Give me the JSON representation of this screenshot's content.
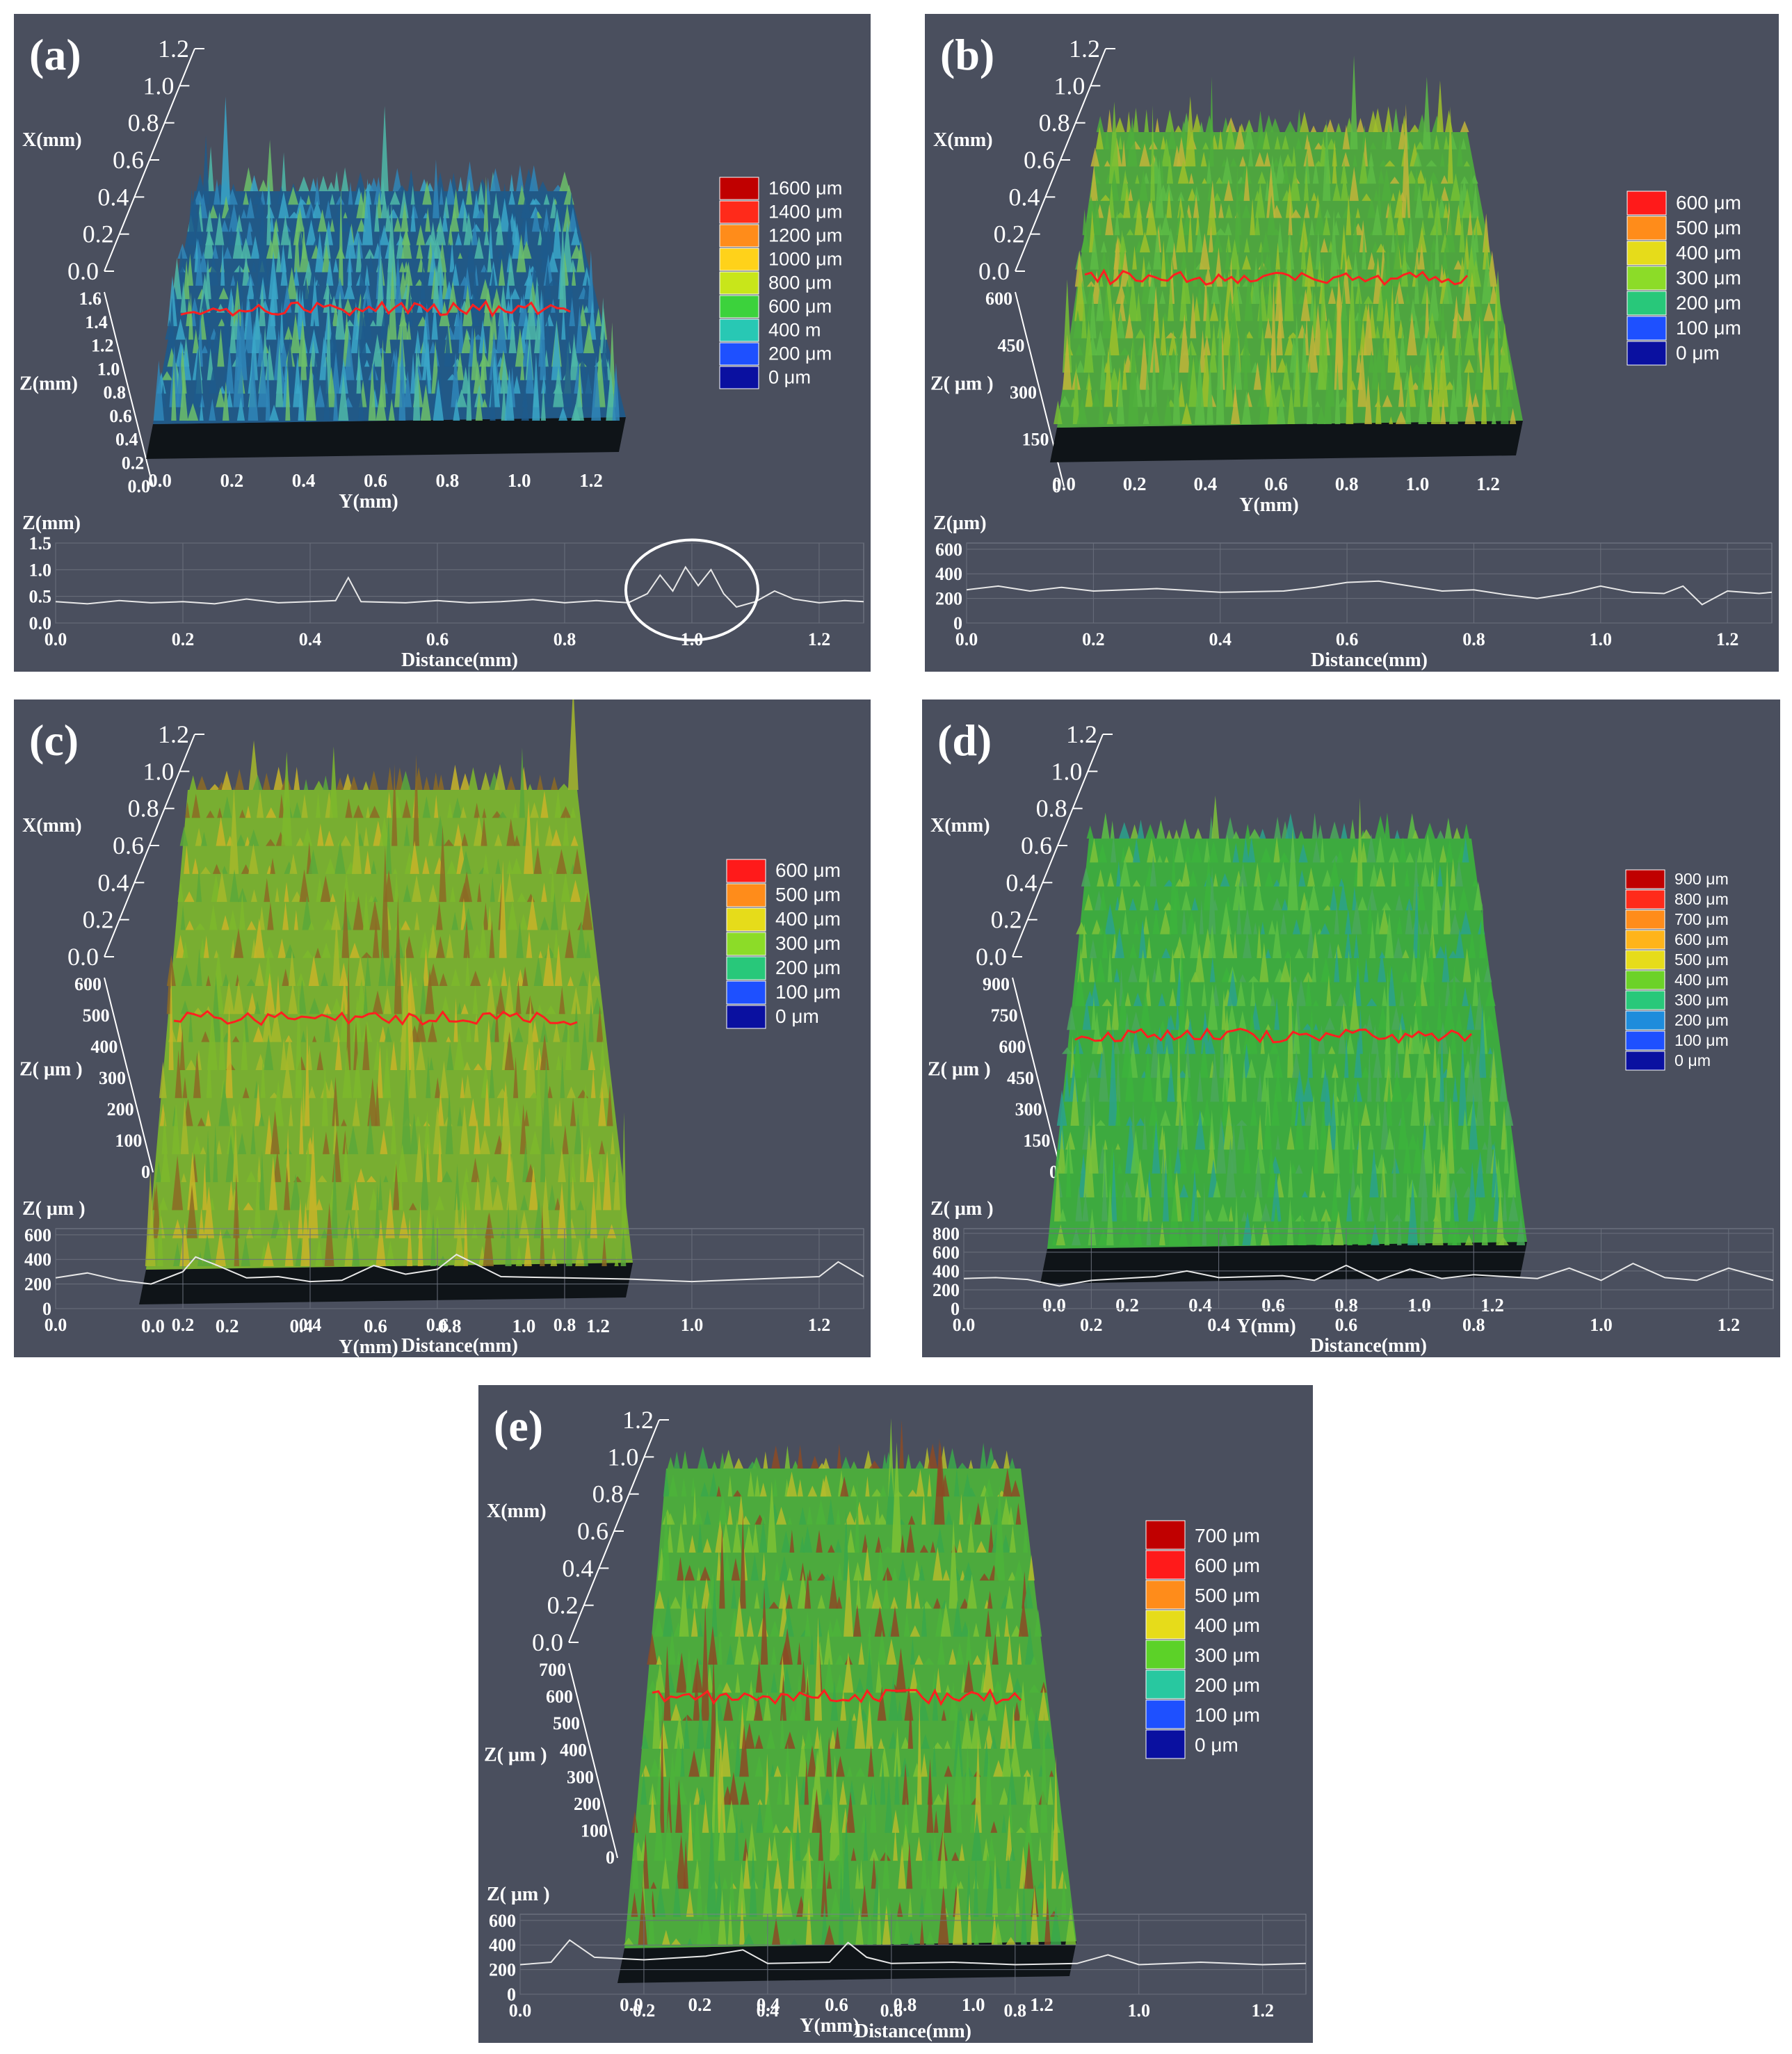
{
  "figure": {
    "panels": [
      {
        "id": "a",
        "label": "(a)",
        "x_axis_label": "X(mm)",
        "x_ticks": [
          "1.2",
          "1.0",
          "0.8",
          "0.6",
          "0.4",
          "0.2",
          "0.0"
        ],
        "z_axis_label": "Z(mm)",
        "z_ticks": [
          "1.6",
          "1.4",
          "1.2",
          "1.0",
          "0.8",
          "0.6",
          "0.4",
          "0.2",
          "0.0"
        ],
        "y_axis_label": "Y(mm)",
        "y_ticks": [
          "0.0",
          "0.2",
          "0.4",
          "0.6",
          "0.8",
          "1.0",
          "1.2"
        ],
        "legend": [
          "1600 μm",
          "1400 μm",
          "1200 μm",
          "1000 μm",
          "800 μm",
          "600 μm",
          "400   m",
          "200 μm",
          "0 μm"
        ],
        "legend_colors": [
          "#c00000",
          "#ff2a1a",
          "#ff8c1a",
          "#ffd21a",
          "#c8e61a",
          "#3cd23c",
          "#28c8b4",
          "#1e50ff",
          "#0a10a0"
        ],
        "surface_palette": [
          "#1d5a8c",
          "#2f86b8",
          "#3aa6c8",
          "#4db8a8",
          "#6cbf6a"
        ],
        "profile_axis_label": "Z(mm)",
        "profile_y_ticks": [
          "1.5",
          "1.0",
          "0.5",
          "0.0"
        ],
        "profile_x_ticks": [
          "0.0",
          "0.2",
          "0.4",
          "0.6",
          "0.8",
          "1.0",
          "1.2"
        ],
        "profile_x_label": "Distance(mm)",
        "profile_ylim": [
          0,
          1.5
        ],
        "profile_xlim": [
          0,
          1.27
        ],
        "profile_points": [
          [
            0,
            0.4
          ],
          [
            0.05,
            0.36
          ],
          [
            0.1,
            0.42
          ],
          [
            0.15,
            0.38
          ],
          [
            0.2,
            0.4
          ],
          [
            0.25,
            0.36
          ],
          [
            0.3,
            0.45
          ],
          [
            0.35,
            0.38
          ],
          [
            0.4,
            0.4
          ],
          [
            0.44,
            0.42
          ],
          [
            0.46,
            0.85
          ],
          [
            0.48,
            0.4
          ],
          [
            0.55,
            0.38
          ],
          [
            0.6,
            0.42
          ],
          [
            0.65,
            0.38
          ],
          [
            0.7,
            0.4
          ],
          [
            0.75,
            0.44
          ],
          [
            0.8,
            0.38
          ],
          [
            0.85,
            0.42
          ],
          [
            0.9,
            0.38
          ],
          [
            0.93,
            0.55
          ],
          [
            0.95,
            0.9
          ],
          [
            0.97,
            0.6
          ],
          [
            0.99,
            1.05
          ],
          [
            1.01,
            0.7
          ],
          [
            1.03,
            1.0
          ],
          [
            1.05,
            0.55
          ],
          [
            1.07,
            0.3
          ],
          [
            1.1,
            0.4
          ],
          [
            1.13,
            0.6
          ],
          [
            1.16,
            0.45
          ],
          [
            1.2,
            0.38
          ],
          [
            1.24,
            0.42
          ],
          [
            1.27,
            0.4
          ]
        ],
        "highlight_circle": true
      },
      {
        "id": "b",
        "label": "(b)",
        "x_axis_label": "X(mm)",
        "x_ticks": [
          "1.2",
          "1.0",
          "0.8",
          "0.6",
          "0.4",
          "0.2",
          "0.0"
        ],
        "z_axis_label": "Z( μm )",
        "z_ticks": [
          "600",
          "450",
          "300",
          "150",
          "0"
        ],
        "y_axis_label": "Y(mm)",
        "y_ticks": [
          "0.0",
          "0.2",
          "0.4",
          "0.6",
          "0.8",
          "1.0",
          "1.2"
        ],
        "legend": [
          "600 μm",
          "500 μm",
          "400 μm",
          "300 μm",
          "200 μm",
          "100 μm",
          "0 μm"
        ],
        "legend_colors": [
          "#ff1a1a",
          "#ff8c1a",
          "#e6dc1a",
          "#8cdc28",
          "#28c87a",
          "#1e50ff",
          "#0a10a0"
        ],
        "surface_palette": [
          "#4fae3c",
          "#76c034",
          "#9fbf2a",
          "#c2b43a",
          "#5dbb45"
        ],
        "profile_axis_label": "Z(μm)",
        "profile_y_ticks": [
          "600",
          "400",
          "200",
          "0"
        ],
        "profile_x_ticks": [
          "0.0",
          "0.2",
          "0.4",
          "0.6",
          "0.8",
          "1.0",
          "1.2"
        ],
        "profile_x_label": "Distance(mm)",
        "profile_ylim": [
          0,
          650
        ],
        "profile_xlim": [
          0,
          1.27
        ],
        "profile_points": [
          [
            0,
            270
          ],
          [
            0.05,
            300
          ],
          [
            0.1,
            260
          ],
          [
            0.15,
            290
          ],
          [
            0.2,
            260
          ],
          [
            0.3,
            280
          ],
          [
            0.4,
            250
          ],
          [
            0.5,
            260
          ],
          [
            0.55,
            290
          ],
          [
            0.6,
            330
          ],
          [
            0.65,
            340
          ],
          [
            0.7,
            300
          ],
          [
            0.75,
            260
          ],
          [
            0.8,
            270
          ],
          [
            0.85,
            230
          ],
          [
            0.9,
            200
          ],
          [
            0.95,
            240
          ],
          [
            1.0,
            300
          ],
          [
            1.05,
            250
          ],
          [
            1.1,
            240
          ],
          [
            1.13,
            300
          ],
          [
            1.16,
            150
          ],
          [
            1.2,
            260
          ],
          [
            1.25,
            240
          ],
          [
            1.27,
            250
          ]
        ],
        "highlight_circle": false
      },
      {
        "id": "c",
        "label": "(c)",
        "x_axis_label": "X(mm)",
        "x_ticks": [
          "1.2",
          "1.0",
          "0.8",
          "0.6",
          "0.4",
          "0.2",
          "0.0"
        ],
        "z_axis_label": "Z( μm )",
        "z_ticks": [
          "600",
          "500",
          "400",
          "300",
          "200",
          "100",
          "0"
        ],
        "y_axis_label": "Y(mm)",
        "y_ticks": [
          "0.0",
          "0.2",
          "0.4",
          "0.6",
          "0.8",
          "1.0",
          "1.2"
        ],
        "legend": [
          "600 μm",
          "500 μm",
          "400 μm",
          "300 μm",
          "200 μm",
          "100 μm",
          "0 μm"
        ],
        "legend_colors": [
          "#ff1a1a",
          "#ff8c1a",
          "#e6dc1a",
          "#8cdc28",
          "#28c87a",
          "#1e50ff",
          "#0a10a0"
        ],
        "surface_palette": [
          "#7db82c",
          "#a6b82a",
          "#c8b428",
          "#5aa83a",
          "#8c6a24"
        ],
        "profile_axis_label": "Z( μm )",
        "profile_y_ticks": [
          "600",
          "400",
          "200",
          "0"
        ],
        "profile_x_ticks": [
          "0.0",
          "0.2",
          "0.4",
          "0.6",
          "0.8",
          "1.0",
          "1.2"
        ],
        "profile_x_label": "Distance(mm)",
        "profile_ylim": [
          0,
          650
        ],
        "profile_xlim": [
          0,
          1.27
        ],
        "profile_points": [
          [
            0,
            250
          ],
          [
            0.05,
            290
          ],
          [
            0.1,
            230
          ],
          [
            0.15,
            200
          ],
          [
            0.2,
            300
          ],
          [
            0.22,
            420
          ],
          [
            0.25,
            360
          ],
          [
            0.3,
            250
          ],
          [
            0.35,
            260
          ],
          [
            0.4,
            220
          ],
          [
            0.45,
            230
          ],
          [
            0.5,
            350
          ],
          [
            0.55,
            280
          ],
          [
            0.6,
            320
          ],
          [
            0.63,
            440
          ],
          [
            0.7,
            260
          ],
          [
            0.8,
            250
          ],
          [
            0.9,
            240
          ],
          [
            1.0,
            220
          ],
          [
            1.1,
            240
          ],
          [
            1.2,
            260
          ],
          [
            1.23,
            380
          ],
          [
            1.27,
            260
          ]
        ],
        "highlight_circle": false
      },
      {
        "id": "d",
        "label": "(d)",
        "x_axis_label": "X(mm)",
        "x_ticks": [
          "1.2",
          "1.0",
          "0.8",
          "0.6",
          "0.4",
          "0.2",
          "0.0"
        ],
        "z_axis_label": "Z( μm )",
        "z_ticks": [
          "900",
          "750",
          "600",
          "450",
          "300",
          "150",
          "0"
        ],
        "y_axis_label": "Y(mm)",
        "y_ticks": [
          "0.0",
          "0.2",
          "0.4",
          "0.6",
          "0.8",
          "1.0",
          "1.2"
        ],
        "legend": [
          "900 μm",
          "800 μm",
          "700 μm",
          "600 μm",
          "500 μm",
          "400 μm",
          "300 μm",
          "200 μm",
          "100 μm",
          "0 μm"
        ],
        "legend_colors": [
          "#c00000",
          "#ff2a1a",
          "#ff8c1a",
          "#ffb41a",
          "#e6dc1a",
          "#6cd228",
          "#28c87a",
          "#1e8cdc",
          "#1e50ff",
          "#0a10a0"
        ],
        "surface_palette": [
          "#3cb43c",
          "#5cc044",
          "#2aa28c",
          "#7cc23a",
          "#4aa85a"
        ],
        "profile_axis_label": "Z( μm )",
        "profile_y_ticks": [
          "800",
          "600",
          "400",
          "200",
          "0"
        ],
        "profile_x_ticks": [
          "0.0",
          "0.2",
          "0.4",
          "0.6",
          "0.8",
          "1.0",
          "1.2"
        ],
        "profile_x_label": "Distance(mm)",
        "profile_ylim": [
          0,
          850
        ],
        "profile_xlim": [
          0,
          1.27
        ],
        "profile_points": [
          [
            0,
            320
          ],
          [
            0.05,
            330
          ],
          [
            0.1,
            310
          ],
          [
            0.15,
            240
          ],
          [
            0.2,
            300
          ],
          [
            0.3,
            340
          ],
          [
            0.35,
            400
          ],
          [
            0.4,
            330
          ],
          [
            0.5,
            350
          ],
          [
            0.55,
            300
          ],
          [
            0.6,
            460
          ],
          [
            0.65,
            300
          ],
          [
            0.7,
            420
          ],
          [
            0.75,
            320
          ],
          [
            0.8,
            360
          ],
          [
            0.9,
            320
          ],
          [
            0.95,
            430
          ],
          [
            1.0,
            300
          ],
          [
            1.05,
            480
          ],
          [
            1.1,
            330
          ],
          [
            1.15,
            300
          ],
          [
            1.2,
            430
          ],
          [
            1.27,
            300
          ]
        ],
        "highlight_circle": false
      },
      {
        "id": "e",
        "label": "(e)",
        "x_axis_label": "X(mm)",
        "x_ticks": [
          "1.2",
          "1.0",
          "0.8",
          "0.6",
          "0.4",
          "0.2",
          "0.0"
        ],
        "z_axis_label": "Z( μm )",
        "z_ticks": [
          "700",
          "600",
          "500",
          "400",
          "300",
          "200",
          "100",
          "0"
        ],
        "y_axis_label": "Y(mm)",
        "y_ticks": [
          "0.0",
          "0.2",
          "0.4",
          "0.6",
          "0.8",
          "1.0",
          "1.2"
        ],
        "legend": [
          "700 μm",
          "600 μm",
          "500 μm",
          "400 μm",
          "300 μm",
          "200 μm",
          "100 μm",
          "0 μm"
        ],
        "legend_colors": [
          "#c00000",
          "#ff1a1a",
          "#ff8c1a",
          "#e6dc1a",
          "#5cd228",
          "#28c8a0",
          "#1e50ff",
          "#0a10a0"
        ],
        "surface_palette": [
          "#4cb43a",
          "#7cc234",
          "#b4bc2c",
          "#3aa84a",
          "#8c4a24"
        ],
        "profile_axis_label": "Z( μm )",
        "profile_y_ticks": [
          "600",
          "400",
          "200",
          "0"
        ],
        "profile_x_ticks": [
          "0.0",
          "0.2",
          "0.4",
          "0.6",
          "0.8",
          "1.0",
          "1.2"
        ],
        "profile_x_label": "Distance(mm)",
        "profile_ylim": [
          0,
          650
        ],
        "profile_xlim": [
          0,
          1.27
        ],
        "profile_points": [
          [
            0,
            240
          ],
          [
            0.05,
            260
          ],
          [
            0.08,
            440
          ],
          [
            0.12,
            300
          ],
          [
            0.2,
            280
          ],
          [
            0.3,
            310
          ],
          [
            0.36,
            360
          ],
          [
            0.4,
            250
          ],
          [
            0.5,
            260
          ],
          [
            0.53,
            420
          ],
          [
            0.56,
            300
          ],
          [
            0.6,
            250
          ],
          [
            0.7,
            260
          ],
          [
            0.8,
            240
          ],
          [
            0.9,
            250
          ],
          [
            0.95,
            320
          ],
          [
            1.0,
            240
          ],
          [
            1.1,
            260
          ],
          [
            1.2,
            240
          ],
          [
            1.27,
            250
          ]
        ],
        "highlight_circle": false
      }
    ]
  }
}
